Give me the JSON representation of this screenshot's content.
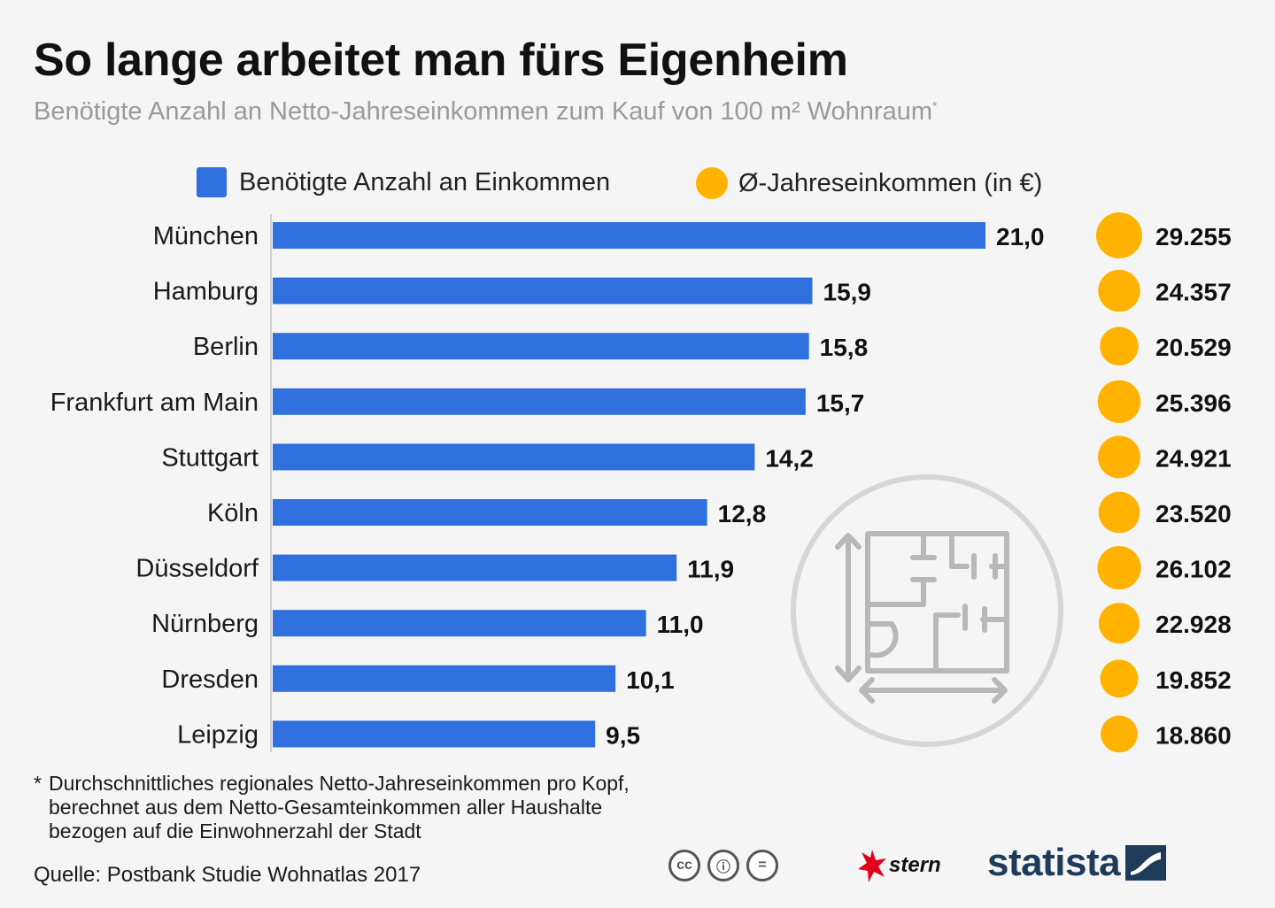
{
  "header": {
    "title": "So lange arbeitet man fürs Eigenheim",
    "subtitle": "Benötigte Anzahl an Netto-Jahreseinkommen zum Kauf von 100 m² Wohnraum",
    "subtitle_marker": "*"
  },
  "legend": {
    "bars_label": "Benötigte Anzahl an Einkommen",
    "dots_label": "Ø-Jahreseinkommen (in €)"
  },
  "colors": {
    "bar": "#2f6fde",
    "dot": "#ffb300",
    "icon_gray": "#b8b8b8"
  },
  "chart_data": {
    "type": "bar",
    "orientation": "horizontal",
    "title": "So lange arbeitet man fürs Eigenheim",
    "categories": [
      "München",
      "Hamburg",
      "Berlin",
      "Frankfurt am Main",
      "Stuttgart",
      "Köln",
      "Düsseldorf",
      "Nürnberg",
      "Dresden",
      "Leipzig"
    ],
    "series": [
      {
        "name": "Benötigte Anzahl an Einkommen",
        "values": [
          21.0,
          15.9,
          15.8,
          15.7,
          14.2,
          12.8,
          11.9,
          11.0,
          10.1,
          9.5
        ],
        "labels": [
          "21,0",
          "15,9",
          "15,8",
          "15,7",
          "14,2",
          "12,8",
          "11,9",
          "11,0",
          "10,1",
          "9,5"
        ]
      },
      {
        "name": "Ø-Jahreseinkommen (in €)",
        "values": [
          29255,
          24357,
          20529,
          25396,
          24921,
          23520,
          26102,
          22928,
          19852,
          18860
        ],
        "labels": [
          "29.255",
          "24.357",
          "20.529",
          "25.396",
          "24.921",
          "23.520",
          "26.102",
          "22.928",
          "19.852",
          "18.860"
        ]
      }
    ],
    "xlim": [
      0,
      21
    ]
  },
  "footnote": {
    "marker": "*",
    "lines": [
      "Durchschnittliches regionales Netto-Jahreseinkommen pro Kopf,",
      "berechnet aus dem Netto-Gesamteinkommen aller Haushalte",
      "bezogen auf die Einwohnerzahl der Stadt"
    ]
  },
  "source": "Quelle: Postbank Studie Wohnatlas 2017",
  "branding": {
    "cc_icons": [
      {
        "icon": "cc-icon",
        "text": "cc"
      },
      {
        "icon": "by-person-icon",
        "text": "ⓘ"
      },
      {
        "icon": "nd-equals-icon",
        "text": "="
      }
    ],
    "stern": "stern",
    "statista": "statista"
  }
}
